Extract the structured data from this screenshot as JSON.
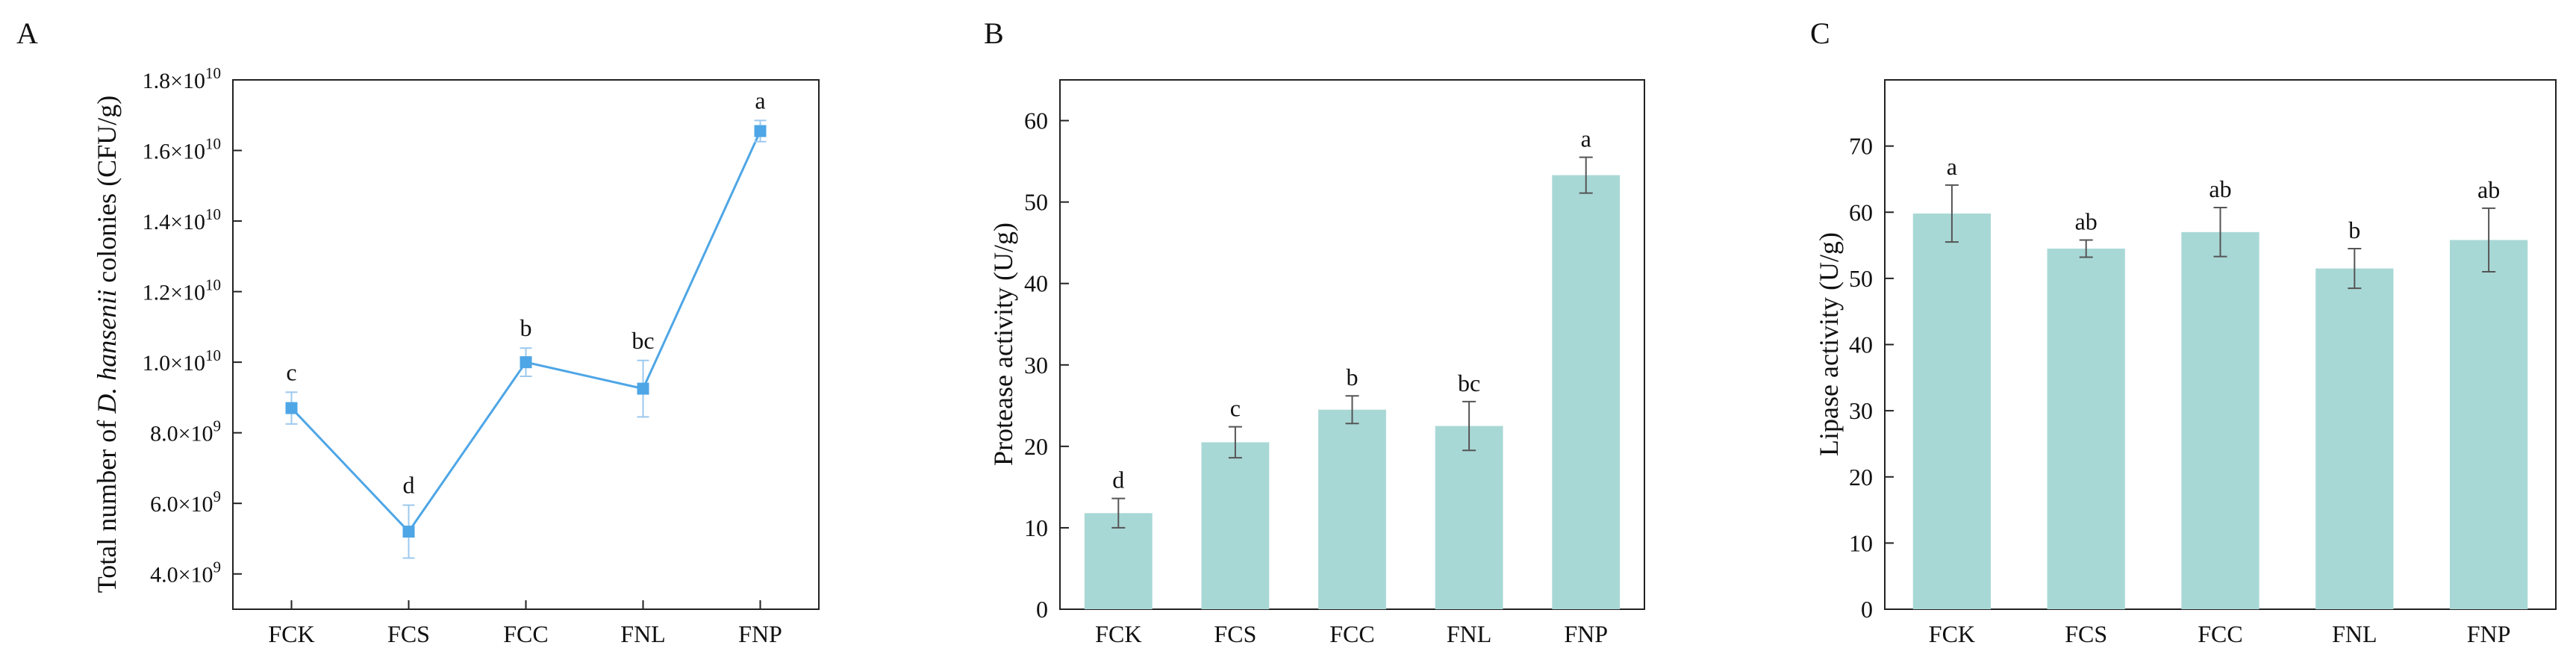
{
  "chart_data": [
    {
      "panel": "A",
      "type": "line",
      "categories": [
        "FCK",
        "FCS",
        "FCC",
        "FNL",
        "FNP"
      ],
      "values": [
        8700000000.0,
        5200000000.0,
        10000000000.0,
        9250000000.0,
        16550000000.0
      ],
      "errors": [
        450000000.0,
        750000000.0,
        400000000.0,
        800000000.0,
        300000000.0
      ],
      "letters": [
        "c",
        "d",
        "b",
        "bc",
        "a"
      ],
      "ylabel_pre": "Total number of ",
      "ylabel_italic": "D. hansenii",
      "ylabel_post": " colonies (CFU/g)",
      "ylim": [
        3000000000.0,
        18000000000.0
      ],
      "ticks": [
        {
          "value": 4000000000.0,
          "mant": "4.0",
          "exp": "9"
        },
        {
          "value": 6000000000.0,
          "mant": "6.0",
          "exp": "9"
        },
        {
          "value": 8000000000.0,
          "mant": "8.0",
          "exp": "9"
        },
        {
          "value": 10000000000.0,
          "mant": "1.0",
          "exp": "10"
        },
        {
          "value": 12000000000.0,
          "mant": "1.2",
          "exp": "10"
        },
        {
          "value": 14000000000.0,
          "mant": "1.4",
          "exp": "10"
        },
        {
          "value": 16000000000.0,
          "mant": "1.6",
          "exp": "10"
        },
        {
          "value": 18000000000.0,
          "mant": "1.8",
          "exp": "10"
        }
      ],
      "color": "#4ea6e6"
    },
    {
      "panel": "B",
      "type": "bar",
      "categories": [
        "FCK",
        "FCS",
        "FCC",
        "FNL",
        "FNP"
      ],
      "values": [
        11.8,
        20.5,
        24.5,
        22.5,
        53.3
      ],
      "errors": [
        1.8,
        1.9,
        1.7,
        3.0,
        2.2
      ],
      "letters": [
        "d",
        "c",
        "b",
        "bc",
        "a"
      ],
      "ylabel": "Protease activity (U/g)",
      "ylim": [
        0,
        65
      ],
      "yticks": [
        0,
        10,
        20,
        30,
        40,
        50,
        60
      ],
      "color": "#a8d8d6"
    },
    {
      "panel": "C",
      "type": "bar",
      "categories": [
        "FCK",
        "FCS",
        "FCC",
        "FNL",
        "FNP"
      ],
      "values": [
        59.8,
        54.5,
        57.0,
        51.5,
        55.8
      ],
      "errors": [
        4.3,
        1.3,
        3.7,
        3.0,
        4.8
      ],
      "letters": [
        "a",
        "ab",
        "ab",
        "b",
        "ab"
      ],
      "ylabel": "Lipase activity (U/g)",
      "ylim": [
        0,
        80
      ],
      "yticks": [
        0,
        10,
        20,
        30,
        40,
        50,
        60,
        70
      ],
      "color": "#a8d8d6"
    }
  ]
}
